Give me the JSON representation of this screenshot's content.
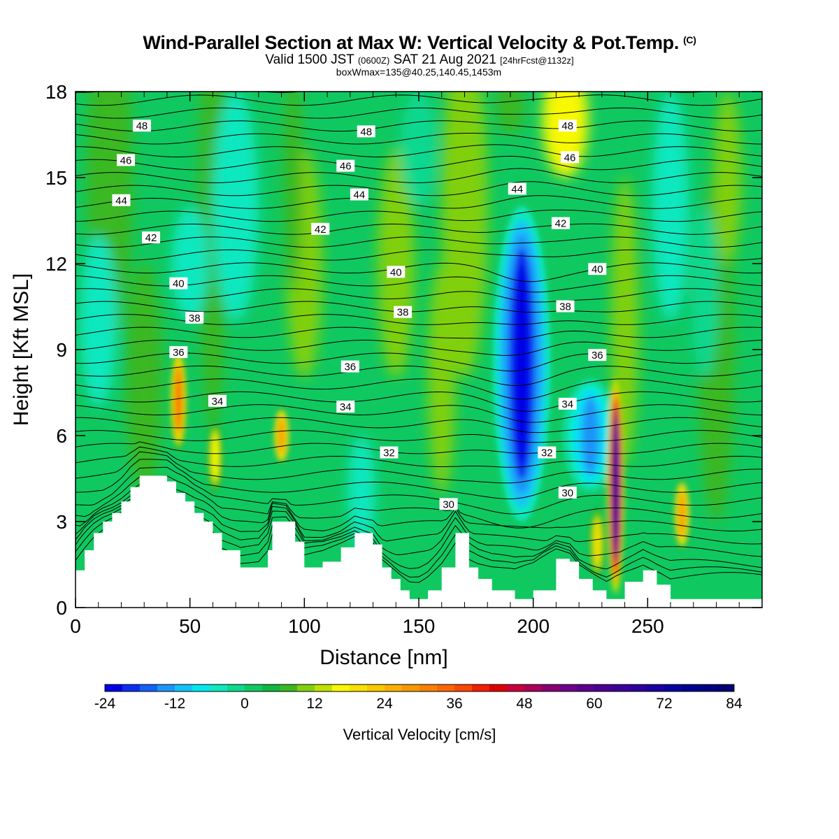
{
  "header": {
    "title_main": "Wind-Parallel Section at Max W: Vertical Velocity & Pot.Temp.",
    "title_copyright": "(C)",
    "subtitle_a": "Valid 1500 JST",
    "subtitle_b": "(0600Z)",
    "subtitle_c": "SAT 21 Aug 2021",
    "subtitle_d": "[24hrFcst@1132z]",
    "subtitle_line3": "boxWmax=135@40.25,140.45,1453m"
  },
  "chart_data": {
    "type": "heatmap",
    "description_fields": {
      "filled_variable": "Vertical Velocity [cm/s]",
      "contour_variable": "Pot.Temp."
    },
    "xlabel": "Distance [nm]",
    "ylabel": "Height [Kft MSL]",
    "xlim": [
      0,
      300
    ],
    "ylim": [
      0,
      18
    ],
    "x_ticks": [
      0,
      50,
      100,
      150,
      200,
      250
    ],
    "y_ticks": [
      0,
      3,
      6,
      9,
      12,
      15,
      18
    ],
    "colorbar": {
      "label": "Vertical Velocity [cm/s]",
      "ticks": [
        -24,
        -12,
        0,
        12,
        24,
        36,
        48,
        60,
        72,
        84
      ],
      "step": 3,
      "colors": [
        "#0000e6",
        "#0a2ff0",
        "#1462f5",
        "#1e94f8",
        "#12c3f7",
        "#00e8f0",
        "#10e8c0",
        "#10d890",
        "#10c860",
        "#10b840",
        "#3ab820",
        "#80d010",
        "#c0e000",
        "#f8f800",
        "#f8e000",
        "#f8c800",
        "#f8b000",
        "#f89800",
        "#f88000",
        "#f86800",
        "#f84800",
        "#f02000",
        "#e00000",
        "#c8003c",
        "#a8005c",
        "#880070",
        "#70008c",
        "#5a008c",
        "#4a0090",
        "#3a0098",
        "#2a009c",
        "#1a00a0",
        "#0a00a0",
        "#000090",
        "#000080",
        "#000070"
      ]
    },
    "terrain_profile": {
      "x": [
        0,
        4,
        8,
        12,
        16,
        20,
        24,
        28,
        40,
        44,
        48,
        52,
        56,
        60,
        64,
        72,
        80,
        84,
        86,
        92,
        96,
        100,
        108,
        116,
        122,
        130,
        134,
        138,
        142,
        146,
        150,
        154,
        160,
        166,
        172,
        176,
        182,
        192,
        200,
        210,
        216,
        220,
        226,
        232,
        240,
        248,
        254,
        260,
        268,
        280,
        292,
        300
      ],
      "height_kft": [
        1.3,
        2.0,
        2.6,
        3.0,
        3.3,
        3.7,
        4.2,
        4.6,
        4.4,
        4.0,
        3.7,
        3.3,
        3.0,
        2.6,
        2.0,
        1.4,
        1.4,
        2.0,
        3.0,
        3.0,
        2.3,
        1.4,
        1.6,
        2.1,
        2.6,
        2.2,
        1.4,
        1.0,
        0.6,
        0.3,
        0.3,
        0.6,
        1.4,
        2.6,
        1.4,
        1.0,
        0.6,
        0.3,
        0.6,
        1.7,
        1.6,
        1.0,
        0.6,
        0.3,
        0.9,
        1.3,
        0.8,
        0.3,
        0.3,
        0.3,
        0.3,
        0.3
      ]
    },
    "updraft_cores": [
      {
        "x": 45,
        "y_bottom": 5.5,
        "y_top": 9.0,
        "peak_cm_s": 33
      },
      {
        "x": 90,
        "y_bottom": 5.0,
        "y_top": 7.0,
        "peak_cm_s": 27
      },
      {
        "x": 61,
        "y_bottom": 4.0,
        "y_top": 6.5,
        "peak_cm_s": 15
      },
      {
        "x": 236,
        "y_bottom": 0.5,
        "y_top": 8.0,
        "peak_cm_s": 66
      },
      {
        "x": 265,
        "y_bottom": 2.0,
        "y_top": 4.5,
        "peak_cm_s": 27
      },
      {
        "x": 228,
        "y_bottom": 1.0,
        "y_top": 3.5,
        "peak_cm_s": 18
      }
    ],
    "downdraft_cores": [
      {
        "x": 195,
        "y_bottom": 3.0,
        "y_top": 14.0,
        "min_cm_s": -24
      },
      {
        "x": 225,
        "y_bottom": 4.0,
        "y_top": 8.0,
        "min_cm_s": -15
      }
    ],
    "theta_contour_labels": [
      {
        "text": "48",
        "x": 29,
        "y": 16.8
      },
      {
        "text": "48",
        "x": 127,
        "y": 16.6
      },
      {
        "text": "48",
        "x": 215,
        "y": 16.8
      },
      {
        "text": "46",
        "x": 22,
        "y": 15.6
      },
      {
        "text": "46",
        "x": 118,
        "y": 15.4
      },
      {
        "text": "46",
        "x": 216,
        "y": 15.7
      },
      {
        "text": "44",
        "x": 20,
        "y": 14.2
      },
      {
        "text": "44",
        "x": 124,
        "y": 14.4
      },
      {
        "text": "44",
        "x": 193,
        "y": 14.6
      },
      {
        "text": "42",
        "x": 33,
        "y": 12.9
      },
      {
        "text": "42",
        "x": 107,
        "y": 13.2
      },
      {
        "text": "42",
        "x": 212,
        "y": 13.4
      },
      {
        "text": "40",
        "x": 45,
        "y": 11.3
      },
      {
        "text": "40",
        "x": 140,
        "y": 11.7
      },
      {
        "text": "40",
        "x": 228,
        "y": 11.8
      },
      {
        "text": "38",
        "x": 52,
        "y": 10.1
      },
      {
        "text": "38",
        "x": 143,
        "y": 10.3
      },
      {
        "text": "38",
        "x": 214,
        "y": 10.5
      },
      {
        "text": "36",
        "x": 45,
        "y": 8.9
      },
      {
        "text": "36",
        "x": 120,
        "y": 8.4
      },
      {
        "text": "36",
        "x": 228,
        "y": 8.8
      },
      {
        "text": "34",
        "x": 62,
        "y": 7.2
      },
      {
        "text": "34",
        "x": 118,
        "y": 7.0
      },
      {
        "text": "34",
        "x": 215,
        "y": 7.1
      },
      {
        "text": "32",
        "x": 137,
        "y": 5.4
      },
      {
        "text": "32",
        "x": 206,
        "y": 5.4
      },
      {
        "text": "30",
        "x": 163,
        "y": 3.6
      },
      {
        "text": "30",
        "x": 215,
        "y": 4.0
      }
    ]
  }
}
